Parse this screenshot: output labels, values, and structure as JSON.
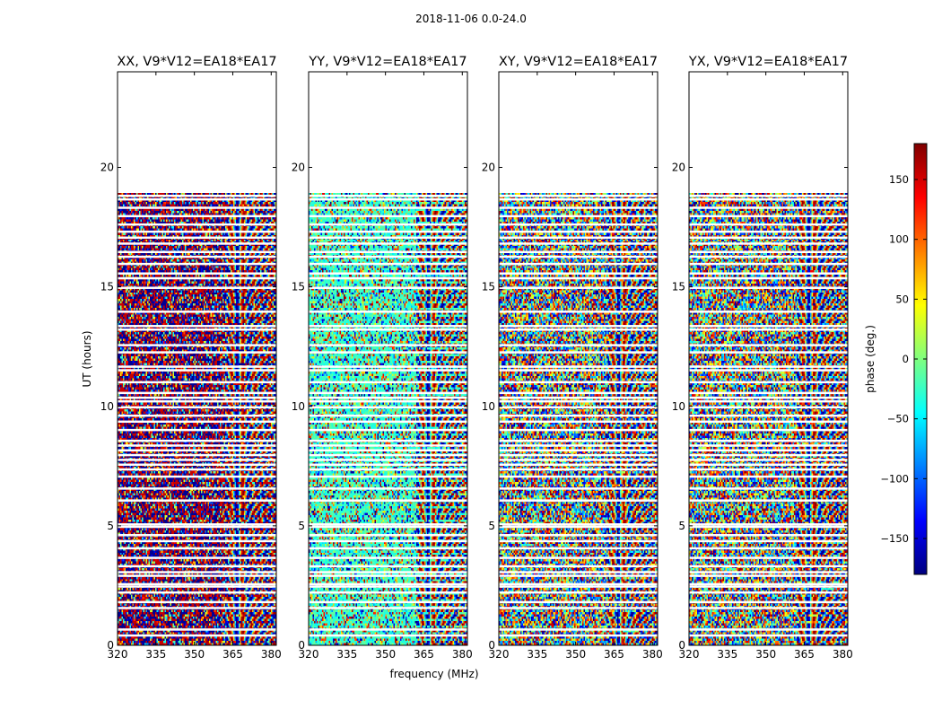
{
  "figure": {
    "suptitle": "2018-11-06 0.0-24.0",
    "xlabel": "frequency (MHz)",
    "ylabel": "UT (hours)"
  },
  "chart_data": {
    "type": "heatmap",
    "colormap": "jet",
    "panels": [
      {
        "title": "XX, V9*V12=EA18*EA17",
        "bias": "deep",
        "bias_strength": 0.6
      },
      {
        "title": "YY, V9*V12=EA18*EA17",
        "bias": "teal",
        "bias_strength": 0.55
      },
      {
        "title": "XY, V9*V12=EA18*EA17",
        "bias": "none",
        "bias_strength": 0
      },
      {
        "title": "YX, V9*V12=EA18*EA17",
        "bias": "none",
        "bias_strength": 0
      }
    ],
    "xlim": [
      320,
      382
    ],
    "x_ticks": [
      320,
      335,
      350,
      365,
      380
    ],
    "ylim": [
      0,
      24
    ],
    "y_ticks": [
      0,
      5,
      10,
      15,
      20
    ],
    "data_time_range": [
      0.0,
      18.9
    ],
    "fringe_freq_start": 362,
    "colorbar": {
      "label": "phase (deg.)",
      "range": [
        -180,
        180
      ],
      "ticks": [
        -150,
        -100,
        -50,
        0,
        50,
        100,
        150
      ]
    },
    "flagged_time_gaps_hours": [
      0.4,
      0.65,
      1.55,
      1.8,
      2.2,
      2.45,
      2.55,
      2.9,
      3.05,
      3.3,
      3.65,
      4.05,
      4.35,
      4.6,
      4.95,
      5.05,
      6.05,
      6.55,
      7.05,
      7.35,
      7.55,
      7.75,
      7.95,
      8.15,
      8.35,
      8.55,
      9.0,
      9.35,
      9.6,
      9.95,
      10.2,
      10.35,
      10.55,
      11.0,
      11.5,
      11.65,
      12.25,
      12.55,
      13.2,
      13.35,
      13.95,
      14.95,
      15.35,
      15.55,
      15.95,
      16.25,
      16.45,
      16.8,
      17.05,
      17.3,
      17.6,
      17.95,
      18.3,
      18.65,
      18.8
    ]
  }
}
